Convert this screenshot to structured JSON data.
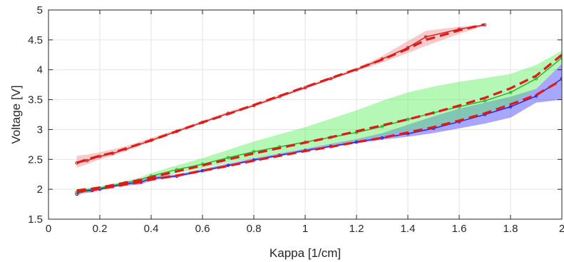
{
  "chart_data": {
    "type": "line",
    "title": "",
    "xlabel": "Kappa [1/cm]",
    "ylabel": "Voltage [V]",
    "xlim": [
      0,
      2
    ],
    "ylim": [
      1.5,
      5
    ],
    "xticks": [
      0,
      0.2,
      0.4,
      0.6,
      0.8,
      1,
      1.2,
      1.4,
      1.6,
      1.8,
      2
    ],
    "xtick_labels": [
      "0",
      "0.2",
      "0.4",
      "0.6",
      "0.8",
      "1",
      "1.2",
      "1.4",
      "1.6",
      "1.8",
      "2"
    ],
    "yticks": [
      1.5,
      2,
      2.5,
      3,
      3.5,
      4,
      4.5,
      5
    ],
    "ytick_labels": [
      "1.5",
      "2",
      "2.5",
      "3",
      "3.5",
      "4",
      "4.5",
      "5"
    ],
    "grid": true,
    "legend": "none",
    "series": [
      {
        "color": "#1f1fd6",
        "band_color": "#3b3bff",
        "x": [
          0.11,
          0.13,
          0.17,
          0.2,
          0.25,
          0.3,
          0.36,
          0.4,
          0.5,
          0.6,
          0.7,
          0.8,
          0.9,
          1.0,
          1.1,
          1.2,
          1.3,
          1.4,
          1.5,
          1.6,
          1.7,
          1.8,
          1.9,
          2.0
        ],
        "y": [
          1.92,
          1.97,
          1.98,
          2.0,
          2.05,
          2.09,
          2.12,
          2.18,
          2.22,
          2.31,
          2.4,
          2.49,
          2.57,
          2.65,
          2.72,
          2.79,
          2.86,
          2.93,
          3.02,
          3.13,
          3.25,
          3.38,
          3.56,
          3.85
        ],
        "y_lower": [
          1.88,
          1.93,
          1.95,
          1.98,
          2.03,
          2.06,
          2.08,
          2.15,
          2.2,
          2.29,
          2.38,
          2.47,
          2.55,
          2.63,
          2.7,
          2.77,
          2.83,
          2.88,
          2.94,
          3.02,
          3.1,
          3.2,
          3.45,
          3.5
        ],
        "y_upper": [
          1.96,
          2.0,
          2.01,
          2.03,
          2.08,
          2.12,
          2.16,
          2.22,
          2.25,
          2.34,
          2.43,
          2.52,
          2.6,
          2.68,
          2.76,
          2.84,
          2.94,
          3.08,
          3.22,
          3.35,
          3.45,
          3.55,
          3.68,
          4.1
        ],
        "fit_y": [
          1.95,
          1.97,
          1.99,
          2.01,
          2.04,
          2.08,
          2.12,
          2.16,
          2.23,
          2.31,
          2.39,
          2.48,
          2.56,
          2.64,
          2.71,
          2.79,
          2.86,
          2.95,
          3.04,
          3.15,
          3.27,
          3.42,
          3.58,
          3.83
        ]
      },
      {
        "color": "#27b027",
        "band_color": "#5bee5b",
        "x": [
          0.11,
          0.13,
          0.17,
          0.2,
          0.25,
          0.3,
          0.35,
          0.4,
          0.5,
          0.6,
          0.7,
          0.8,
          0.9,
          1.0,
          1.1,
          1.2,
          1.3,
          1.4,
          1.5,
          1.6,
          1.7,
          1.8,
          1.9,
          2.0
        ],
        "y": [
          1.95,
          1.98,
          2.0,
          2.02,
          2.06,
          2.11,
          2.15,
          2.22,
          2.33,
          2.42,
          2.53,
          2.63,
          2.71,
          2.79,
          2.87,
          2.95,
          3.05,
          3.17,
          3.28,
          3.38,
          3.48,
          3.62,
          3.85,
          4.2
        ],
        "y_lower": [
          1.91,
          1.94,
          1.97,
          1.99,
          2.03,
          2.08,
          2.12,
          2.18,
          2.27,
          2.35,
          2.44,
          2.52,
          2.6,
          2.68,
          2.75,
          2.82,
          2.9,
          2.98,
          3.05,
          3.15,
          3.27,
          3.42,
          3.68,
          4.1
        ],
        "y_upper": [
          1.99,
          2.02,
          2.03,
          2.05,
          2.09,
          2.14,
          2.19,
          2.27,
          2.4,
          2.52,
          2.66,
          2.8,
          2.92,
          3.04,
          3.18,
          3.32,
          3.48,
          3.62,
          3.72,
          3.8,
          3.86,
          3.93,
          4.08,
          4.32
        ],
        "fit_y": [
          1.98,
          1.99,
          2.01,
          2.03,
          2.07,
          2.11,
          2.15,
          2.2,
          2.3,
          2.4,
          2.5,
          2.6,
          2.69,
          2.78,
          2.87,
          2.97,
          3.07,
          3.17,
          3.28,
          3.4,
          3.53,
          3.69,
          3.9,
          4.25
        ]
      },
      {
        "color": "#c81e1e",
        "band_color": "#ef8a8a",
        "x": [
          0.11,
          0.15,
          0.2,
          0.25,
          0.3,
          0.4,
          0.5,
          0.6,
          0.7,
          0.8,
          0.9,
          1.0,
          1.1,
          1.2,
          1.3,
          1.4,
          1.47,
          1.6,
          1.7
        ],
        "y": [
          2.44,
          2.48,
          2.55,
          2.6,
          2.67,
          2.82,
          2.97,
          3.12,
          3.27,
          3.4,
          3.55,
          3.7,
          3.85,
          4.0,
          4.18,
          4.37,
          4.55,
          4.68,
          4.75
        ],
        "y_lower": [
          2.36,
          2.42,
          2.5,
          2.56,
          2.64,
          2.79,
          2.95,
          3.1,
          3.25,
          3.38,
          3.53,
          3.68,
          3.83,
          3.98,
          4.12,
          4.28,
          4.4,
          4.6,
          4.74
        ],
        "y_upper": [
          2.56,
          2.58,
          2.62,
          2.67,
          2.72,
          2.86,
          3.0,
          3.15,
          3.3,
          3.43,
          3.58,
          3.73,
          3.88,
          4.03,
          4.23,
          4.48,
          4.65,
          4.72,
          4.76
        ],
        "fit_y": [
          2.44,
          2.5,
          2.56,
          2.61,
          2.68,
          2.82,
          2.97,
          3.12,
          3.26,
          3.41,
          3.56,
          3.71,
          3.86,
          4.01,
          4.17,
          4.35,
          4.5,
          4.66,
          4.76
        ]
      }
    ],
    "fit_color": "#e01a1a"
  }
}
